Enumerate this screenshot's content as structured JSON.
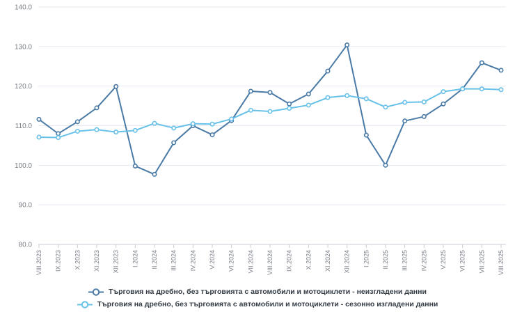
{
  "chart_data": {
    "type": "line",
    "title": "",
    "xlabel": "",
    "ylabel": "",
    "categories": [
      "VIII.2023",
      "IX.2023",
      "X.2023",
      "XI.2023",
      "XII.2023",
      "I.2024",
      "II.2024",
      "III.2024",
      "IV.2024",
      "V.2024",
      "VI.2024",
      "VII.2024",
      "VIII.2024",
      "IX.2024",
      "X.2024",
      "XI.2024",
      "XII.2024",
      "I.2025",
      "II.2025",
      "III.2025",
      "IV.2025",
      "V.2025",
      "VI.2025",
      "VII.2025",
      "VIII.2025"
    ],
    "series": [
      {
        "name": "Търговия на дребно, без търговията с автомобили и мотоциклети - неизгладени данни",
        "color": "#4a7aa6",
        "marker": "circle",
        "values": [
          111.6,
          108.0,
          111.0,
          114.5,
          119.9,
          99.8,
          97.7,
          105.7,
          110.0,
          107.7,
          111.3,
          118.7,
          118.4,
          115.5,
          118.0,
          123.8,
          130.4,
          107.6,
          100.0,
          111.2,
          112.3,
          115.5,
          119.3,
          125.9,
          124.0
        ]
      },
      {
        "name": "Търговия на дребно, без търговията с автомобили и мотоциклети - сезонно изгладени данни",
        "color": "#67c1e8",
        "marker": "circle",
        "values": [
          107.1,
          107.0,
          108.6,
          109.0,
          108.4,
          108.8,
          110.6,
          109.4,
          110.5,
          110.4,
          111.7,
          113.9,
          113.6,
          114.4,
          115.2,
          117.1,
          117.6,
          116.8,
          114.7,
          115.9,
          116.0,
          118.6,
          119.3,
          119.3,
          119.1
        ]
      }
    ],
    "ylim": [
      80,
      140
    ],
    "yticks": [
      80,
      90,
      100,
      110,
      120,
      130,
      140
    ],
    "ytick_labels": [
      "80.0",
      "90.0",
      "100.0",
      "110.0",
      "120.0",
      "130.0",
      "140.0"
    ],
    "grid": true,
    "legend_position": "bottom-center"
  },
  "colors": {
    "background": "#ffffff",
    "gridline": "#e6eaf2",
    "axis_line": "#c9ccd3",
    "tick_label": "#7a7f87",
    "legend_text": "#333b44"
  }
}
